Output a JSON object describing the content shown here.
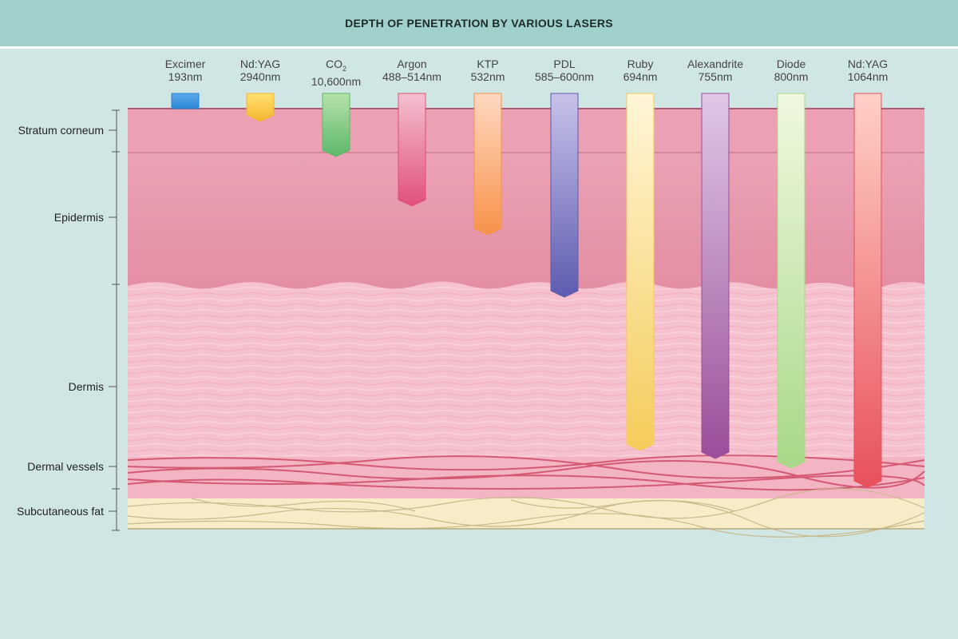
{
  "title": "DEPTH OF PENETRATION BY VARIOUS LASERS",
  "layers": [
    {
      "label": "Stratum corneum",
      "key": "stratum"
    },
    {
      "label": "Epidermis",
      "key": "epidermis"
    },
    {
      "label": "Dermis",
      "key": "dermis"
    },
    {
      "label": "Dermal vessels",
      "key": "vessels"
    },
    {
      "label": "Subcutaneous fat",
      "key": "fat"
    }
  ],
  "lasers": [
    {
      "name": "Excimer",
      "wavelength": "193nm",
      "color_top": "#5aa8e8",
      "color_bottom": "#2d86d6",
      "reaches": "surface"
    },
    {
      "name": "Nd:YAG",
      "wavelength": "2940nm",
      "color_top": "#ffe070",
      "color_bottom": "#f5b530",
      "reaches": "Stratum corneum"
    },
    {
      "name": "CO",
      "name_sub": "2",
      "wavelength": "10,600nm",
      "color_top": "#b6e2a8",
      "color_bottom": "#5cb86a",
      "reaches": "Stratum corneum"
    },
    {
      "name": "Argon",
      "wavelength": "488–514nm",
      "color_top": "#f5c0d0",
      "color_bottom": "#e0507a",
      "reaches": "Epidermis"
    },
    {
      "name": "KTP",
      "wavelength": "532nm",
      "color_top": "#ffd8c0",
      "color_bottom": "#f7924a",
      "reaches": "Epidermis"
    },
    {
      "name": "PDL",
      "wavelength": "585–600nm",
      "color_top": "#c8c2ea",
      "color_bottom": "#5c5cb0",
      "reaches": "Dermis"
    },
    {
      "name": "Ruby",
      "wavelength": "694nm",
      "color_top": "#fff6d8",
      "color_bottom": "#f5cc5a",
      "reaches": "Dermis"
    },
    {
      "name": "Alexandrite",
      "wavelength": "755nm",
      "color_top": "#e0c8e6",
      "color_bottom": "#9a4e9a",
      "reaches": "Dermal vessels"
    },
    {
      "name": "Diode",
      "wavelength": "800nm",
      "color_top": "#f0f8e0",
      "color_bottom": "#a8d888",
      "reaches": "Dermal vessels"
    },
    {
      "name": "Nd:YAG",
      "wavelength": "1064nm",
      "color_top": "#ffd0c8",
      "color_bottom": "#e8505a",
      "reaches": "Dermal vessels"
    }
  ],
  "colors": {
    "background": "#cfe6e4",
    "header": "#9fd0cc",
    "stratum": "#eda0b2",
    "epidermis": "#e89aac",
    "dermis": "#f7c2cf",
    "vessels": "#d45a74",
    "fat": "#f6ecc8"
  }
}
